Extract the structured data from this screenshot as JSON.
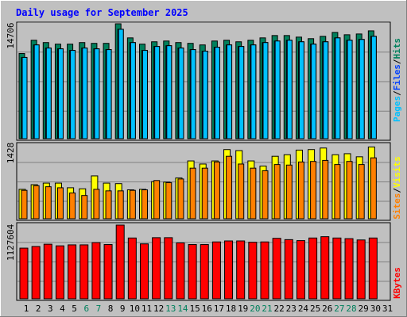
{
  "title": "Daily usage for September 2025",
  "colors": {
    "background": "#c0c0c0",
    "title": "#0000ff",
    "hits": "#00805c",
    "files": "#0040ff",
    "pages": "#00c0ff",
    "visits": "#ffff00",
    "sites": "#ff8000",
    "kbytes": "#ff0000",
    "weekend": "#00805c",
    "text": "#000000"
  },
  "chart_data": [
    {
      "type": "bar",
      "name": "hits-files-pages",
      "legend": [
        "Pages",
        "Files",
        "Hits"
      ],
      "y_tick_label": "14706",
      "ylim": [
        0,
        14706
      ],
      "categories": [
        "1",
        "2",
        "3",
        "4",
        "5",
        "6",
        "7",
        "8",
        "9",
        "10",
        "11",
        "12",
        "13",
        "14",
        "15",
        "16",
        "17",
        "18",
        "19",
        "20",
        "21",
        "22",
        "23",
        "24",
        "25",
        "26",
        "27",
        "28",
        "29",
        "30"
      ],
      "series": [
        {
          "name": "Hits",
          "values": [
            10900,
            12600,
            12300,
            12100,
            12100,
            12300,
            12200,
            12200,
            14706,
            12900,
            12100,
            12400,
            12500,
            12300,
            12200,
            12000,
            12500,
            12600,
            12400,
            12600,
            12900,
            13200,
            13200,
            13000,
            12800,
            13100,
            13600,
            13300,
            13400,
            13800
          ]
        },
        {
          "name": "Files",
          "values": [
            10400,
            12000,
            11600,
            11500,
            11300,
            11600,
            11500,
            11400,
            14000,
            12300,
            11300,
            11800,
            11900,
            11600,
            11400,
            11200,
            11700,
            12000,
            11800,
            12000,
            12300,
            12500,
            12600,
            12400,
            12100,
            12400,
            12900,
            12600,
            12700,
            13100
          ]
        },
        {
          "name": "Pages",
          "values": [
            10400,
            12000,
            11600,
            11500,
            11300,
            11600,
            11500,
            11400,
            14000,
            12300,
            11300,
            11800,
            11900,
            11600,
            11400,
            11200,
            11700,
            12000,
            11800,
            12000,
            12300,
            12500,
            12600,
            12400,
            12100,
            12400,
            12900,
            12600,
            12700,
            13100
          ]
        }
      ]
    },
    {
      "type": "bar",
      "name": "visits-sites",
      "legend": [
        "Sites",
        "Visits"
      ],
      "y_tick_label": "1428",
      "ylim": [
        0,
        1428
      ],
      "categories": [
        "1",
        "2",
        "3",
        "4",
        "5",
        "6",
        "7",
        "8",
        "9",
        "10",
        "11",
        "12",
        "13",
        "14",
        "15",
        "16",
        "17",
        "18",
        "19",
        "20",
        "21",
        "22",
        "23",
        "24",
        "25",
        "26",
        "27",
        "28",
        "29",
        "30"
      ],
      "series": [
        {
          "name": "Visits",
          "values": [
            570,
            660,
            690,
            690,
            600,
            580,
            830,
            690,
            680,
            560,
            570,
            720,
            710,
            790,
            1120,
            1060,
            1120,
            1340,
            1320,
            1120,
            1020,
            1210,
            1240,
            1330,
            1340,
            1370,
            1240,
            1260,
            1200,
            1390
          ]
        },
        {
          "name": "Sites",
          "values": [
            550,
            640,
            620,
            600,
            500,
            450,
            570,
            540,
            540,
            550,
            560,
            740,
            700,
            770,
            980,
            980,
            1100,
            1210,
            1060,
            980,
            930,
            1050,
            1040,
            1100,
            1110,
            1130,
            1050,
            1110,
            1050,
            1180
          ]
        }
      ]
    },
    {
      "type": "bar",
      "name": "kbytes",
      "legend": [
        "KBytes"
      ],
      "y_tick_label": "1127604",
      "ylim": [
        0,
        1127604
      ],
      "categories": [
        "1",
        "2",
        "3",
        "4",
        "5",
        "6",
        "7",
        "8",
        "9",
        "10",
        "11",
        "12",
        "13",
        "14",
        "15",
        "16",
        "17",
        "18",
        "19",
        "20",
        "21",
        "22",
        "23",
        "24",
        "25",
        "26",
        "27",
        "28",
        "29",
        "30"
      ],
      "series": [
        {
          "name": "KBytes",
          "values": [
            775000,
            800000,
            835000,
            810000,
            825000,
            825000,
            860000,
            830000,
            1127604,
            930000,
            840000,
            935000,
            935000,
            855000,
            830000,
            830000,
            870000,
            885000,
            885000,
            865000,
            870000,
            925000,
            905000,
            890000,
            930000,
            950000,
            930000,
            920000,
            900000,
            930000
          ]
        }
      ]
    }
  ],
  "x_labels": [
    "1",
    "2",
    "3",
    "4",
    "5",
    "6",
    "7",
    "8",
    "9",
    "10",
    "11",
    "12",
    "13",
    "14",
    "15",
    "16",
    "17",
    "18",
    "19",
    "20",
    "21",
    "22",
    "23",
    "24",
    "25",
    "26",
    "27",
    "28",
    "29",
    "30",
    "31"
  ],
  "weekend_days": [
    6,
    7,
    13,
    14,
    20,
    21,
    27,
    28
  ]
}
